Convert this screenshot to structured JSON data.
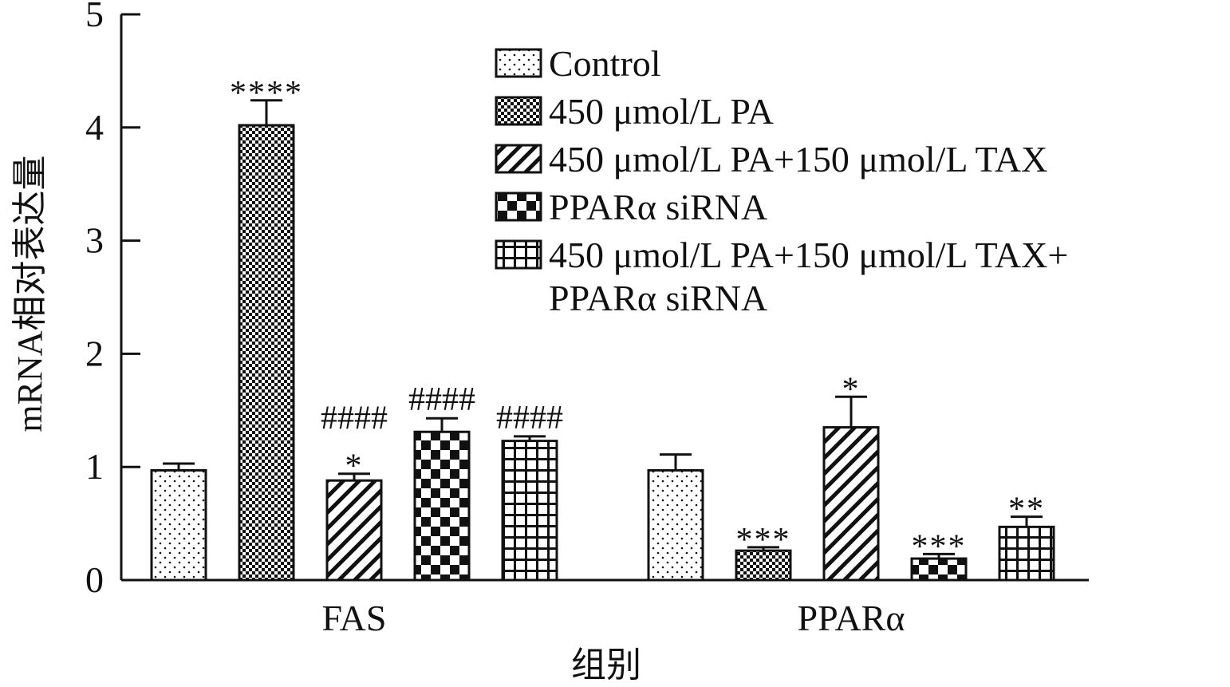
{
  "chart_data": {
    "type": "bar",
    "xlabel": "组别",
    "ylabel": "mRNA相对表达量",
    "ylim": [
      0,
      5
    ],
    "yticks": [
      "0",
      "1",
      "2",
      "3",
      "4",
      "5"
    ],
    "categories": [
      "FAS",
      "PPARα"
    ],
    "legend_position": "top-right",
    "series": [
      {
        "name": "Control",
        "pattern": "dots",
        "values": [
          0.97,
          0.97
        ],
        "errors": [
          0.06,
          0.14
        ],
        "annotations": [
          "",
          ""
        ]
      },
      {
        "name": "450 μmol/L PA",
        "pattern": "dense-checker",
        "values": [
          4.02,
          0.26
        ],
        "errors": [
          0.22,
          0.03
        ],
        "annotations": [
          "****",
          "***"
        ]
      },
      {
        "name": "450 μmol/L PA+150 μmol/L TAX",
        "pattern": "diagonal",
        "values": [
          0.88,
          1.35
        ],
        "errors": [
          0.06,
          0.27
        ],
        "annotations": [
          "####\n*",
          "*"
        ]
      },
      {
        "name": "PPARα siRNA",
        "pattern": "checker",
        "values": [
          1.31,
          0.19
        ],
        "errors": [
          0.12,
          0.04
        ],
        "annotations": [
          "####",
          "***"
        ]
      },
      {
        "name": "450 μmol/L PA+150 μmol/L TAX+PPARα siRNA",
        "legend_lines": [
          "450 μmol/L PA+150 μmol/L TAX+",
          "PPARα siRNA"
        ],
        "pattern": "grid",
        "values": [
          1.23,
          0.47
        ],
        "errors": [
          0.04,
          0.09
        ],
        "annotations": [
          "####",
          "**"
        ]
      }
    ]
  }
}
